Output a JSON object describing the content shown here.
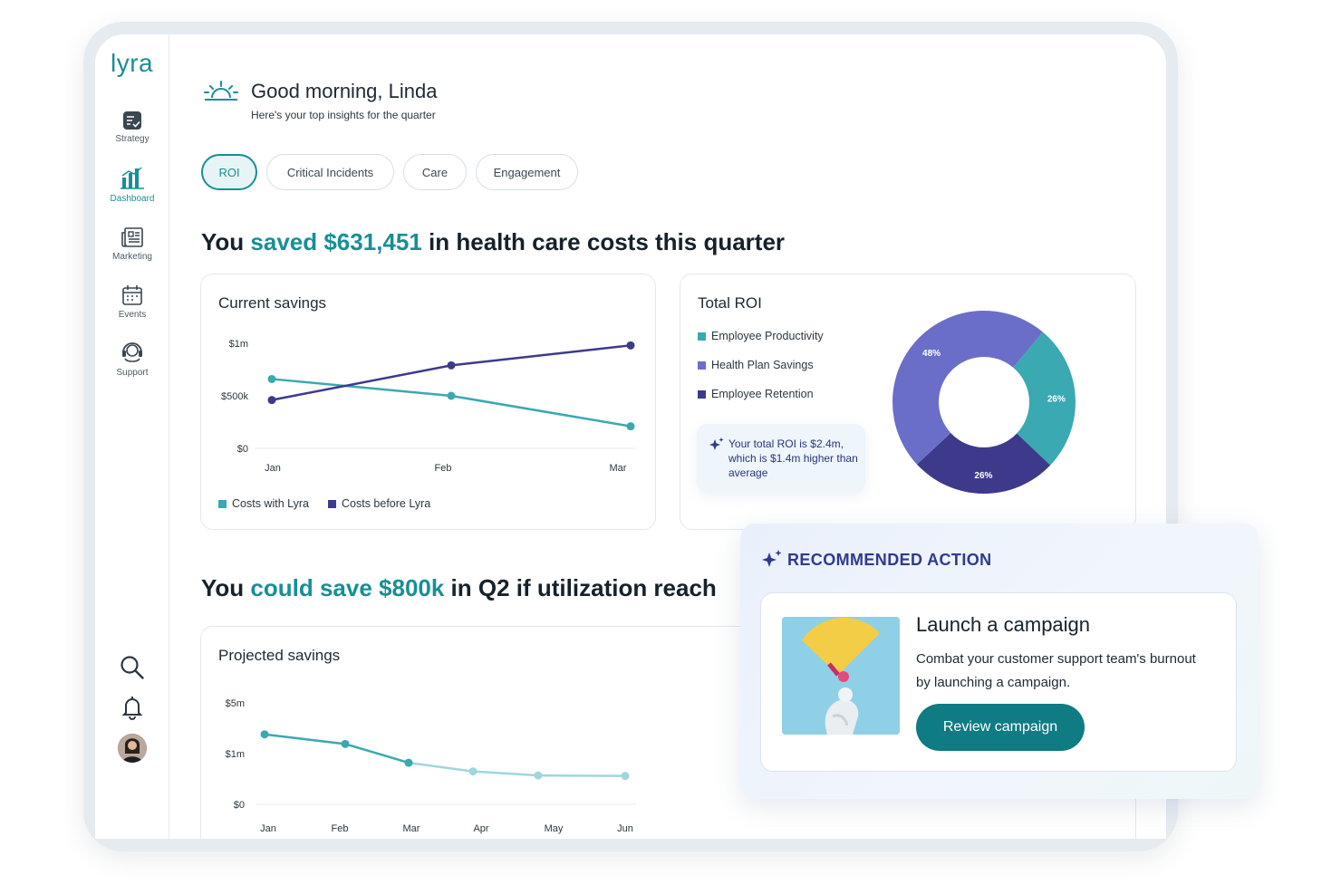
{
  "app": {
    "logo": "lyra"
  },
  "sidebar": {
    "items": [
      {
        "label": "Strategy",
        "icon": "strategy-icon"
      },
      {
        "label": "Dashboard",
        "icon": "dashboard-icon",
        "active": true
      },
      {
        "label": "Marketing",
        "icon": "newspaper-icon"
      },
      {
        "label": "Events",
        "icon": "calendar-icon"
      },
      {
        "label": "Support",
        "icon": "headset-icon"
      }
    ],
    "bottom_icons": [
      "search-icon",
      "bell-icon",
      "avatar"
    ]
  },
  "greeting": {
    "title": "Good morning, Linda",
    "subtitle": "Here's your top insights for the quarter",
    "icon": "sunrise-icon"
  },
  "tabs": [
    {
      "label": "ROI",
      "active": true
    },
    {
      "label": "Critical Incidents"
    },
    {
      "label": "Care"
    },
    {
      "label": "Engagement"
    }
  ],
  "headline1": {
    "pre": "You ",
    "accent": "saved $631,451",
    "post": " in health care costs this quarter"
  },
  "headline2": {
    "pre": "You ",
    "accent": "could save $800k",
    "post": " in Q2 if utilization reach"
  },
  "current_savings": {
    "title": "Current savings",
    "legend": [
      "Costs with Lyra",
      "Costs before Lyra"
    ]
  },
  "total_roi": {
    "title": "Total ROI",
    "legend": [
      "Employee Productivity",
      "Health Plan Savings",
      "Employee Retention"
    ],
    "insight": "Your total ROI is $2.4m, which is $1.4m higher than average"
  },
  "projected_savings": {
    "title": "Projected savings"
  },
  "recommended": {
    "title": "RECOMMENDED ACTION",
    "heading": "Launch a campaign",
    "body": "Combat your customer support team's burnout by launching a campaign.",
    "button": "Review campaign"
  },
  "colors": {
    "accent": "#178f96",
    "teal": "#3aa9b1",
    "purple": "#6b6ec8",
    "navy": "#3d3a8c",
    "button": "#0f7b83"
  },
  "chart_data": [
    {
      "type": "line",
      "title": "Current savings",
      "categories": [
        "Jan",
        "Feb",
        "Mar"
      ],
      "ytick_labels": [
        "$0",
        "$500k",
        "$1m"
      ],
      "ylim": [
        0,
        1000000
      ],
      "series": [
        {
          "name": "Costs with Lyra",
          "color": "#3aa9b1",
          "values": [
            660000,
            500000,
            210000
          ]
        },
        {
          "name": "Costs before Lyra",
          "color": "#3d3a8c",
          "values": [
            460000,
            790000,
            980000
          ]
        }
      ],
      "legend": "bottom-left"
    },
    {
      "type": "pie",
      "title": "Total ROI",
      "donut": true,
      "labels": [
        "Employee Productivity",
        "Employee Retention",
        "Health Plan Savings"
      ],
      "values": [
        26,
        26,
        48
      ],
      "value_labels": [
        "26%",
        "26%",
        "48%"
      ],
      "colors": [
        "#3aa9b1",
        "#3d3a8c",
        "#6b6ec8"
      ],
      "legend": "top-left"
    },
    {
      "type": "line",
      "title": "Projected savings",
      "categories": [
        "Jan",
        "Feb",
        "Mar",
        "Apr",
        "May",
        "Jun"
      ],
      "ytick_labels": [
        "$0",
        "$1m",
        "$5m"
      ],
      "ylim": [
        0,
        2
      ],
      "y_scale_note": "ticks $0, $1m, $5m evenly spaced",
      "series": [
        {
          "name": "",
          "values": [
            1.38,
            1.19,
            0.82,
            0.65,
            0.57,
            0.56
          ]
        }
      ]
    }
  ]
}
